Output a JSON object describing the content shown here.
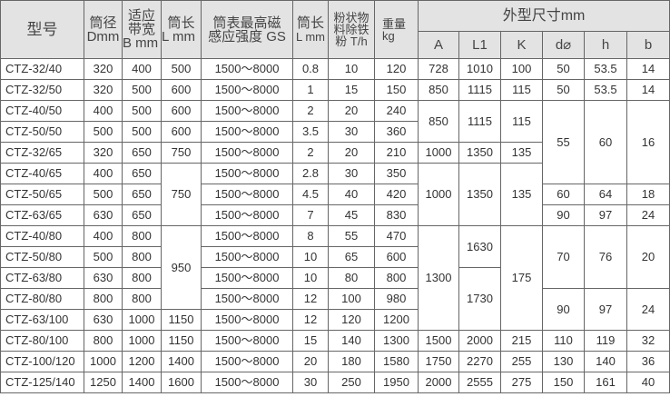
{
  "header": {
    "model": "型号",
    "diameter": [
      "筒径",
      "Dmm"
    ],
    "belt_width": [
      "适应",
      "带宽",
      "B mm"
    ],
    "length": [
      "筒长",
      "L mm"
    ],
    "field_strength": [
      "筒表最高磁",
      "感应强度 GS"
    ],
    "length2": [
      "筒长",
      "L mm"
    ],
    "capacity": [
      "粉状物",
      "料除铁",
      "粉 T/h"
    ],
    "weight": [
      "重量",
      "kg"
    ],
    "dimensions": "外型尺寸mm",
    "dim_cols": [
      "A",
      "L1",
      "K",
      "d⌀",
      "h",
      "b"
    ]
  },
  "rows": [
    [
      "CTZ-32/40",
      "320",
      "400",
      "500",
      "1500～8000",
      "0.8",
      "10",
      "120",
      "728",
      "1010",
      "100",
      "50",
      "53.5",
      "14"
    ],
    [
      "CTZ-32/50",
      "320",
      "500",
      "600",
      "1500～8000",
      "1",
      "15",
      "150",
      "850",
      "1115",
      "115",
      "50",
      "53.5",
      "14"
    ],
    [
      "CTZ-40/50",
      "400",
      "500",
      "600",
      "1500～8000",
      "2",
      "20",
      "240",
      "850",
      "1115",
      "115",
      "55",
      "60",
      "16"
    ],
    [
      "CTZ-50/50",
      "500",
      "500",
      "600",
      "1500～8000",
      "3.5",
      "30",
      "360",
      null,
      null,
      null,
      null,
      null,
      null
    ],
    [
      "CTZ-32/65",
      "320",
      "650",
      "750",
      "1500～8000",
      "2",
      "20",
      "210",
      "1000",
      "1350",
      "135",
      null,
      null,
      null
    ],
    [
      "CTZ-40/65",
      "400",
      "650",
      "750",
      "1500～8000",
      "2.8",
      "30",
      "350",
      "1000",
      "1350",
      "135",
      null,
      null,
      null
    ],
    [
      "CTZ-50/65",
      "500",
      "650",
      null,
      "1500～8000",
      "4.5",
      "40",
      "420",
      null,
      null,
      null,
      "60",
      "64",
      "18"
    ],
    [
      "CTZ-63/65",
      "630",
      "650",
      null,
      "1500～8000",
      "7",
      "45",
      "830",
      null,
      null,
      null,
      "90",
      "97",
      "24"
    ],
    [
      "CTZ-40/80",
      "400",
      "800",
      "950",
      "1500～8000",
      "8",
      "55",
      "470",
      "1300",
      "1630",
      "175",
      "70",
      "76",
      "20"
    ],
    [
      "CTZ-50/80",
      "500",
      "800",
      null,
      "1500～8000",
      "10",
      "65",
      "600",
      null,
      null,
      null,
      null,
      null,
      null
    ],
    [
      "CTZ-63/80",
      "630",
      "800",
      null,
      "1500～8000",
      "10",
      "80",
      "800",
      null,
      "1730",
      null,
      null,
      null,
      null
    ],
    [
      "CTZ-80/80",
      "800",
      "800",
      null,
      "1500～8000",
      "12",
      "100",
      "980",
      null,
      null,
      null,
      "90",
      "97",
      "24"
    ],
    [
      "CTZ-63/100",
      "630",
      "1000",
      "1150",
      "1500～8000",
      "12",
      "120",
      "1200",
      null,
      null,
      null,
      null,
      null,
      null
    ],
    [
      "CTZ-80/100",
      "800",
      "1000",
      "1150",
      "1500～8000",
      "15",
      "140",
      "1300",
      "1500",
      "2000",
      "215",
      "110",
      "119",
      "32"
    ],
    [
      "CTZ-100/120",
      "1000",
      "1200",
      "1400",
      "1500～8000",
      "20",
      "180",
      "1580",
      "1750",
      "2270",
      "255",
      "130",
      "140",
      "36"
    ],
    [
      "CTZ-125/140",
      "1250",
      "1400",
      "1600",
      "1500～8000",
      "30",
      "250",
      "1950",
      "2000",
      "2555",
      "275",
      "150",
      "161",
      "40"
    ]
  ],
  "column_names": [
    "model",
    "diameter",
    "belt-width",
    "length",
    "field-strength",
    "length-2",
    "capacity",
    "weight",
    "dim-a",
    "dim-l1",
    "dim-k",
    "dim-d",
    "dim-h",
    "dim-b"
  ]
}
